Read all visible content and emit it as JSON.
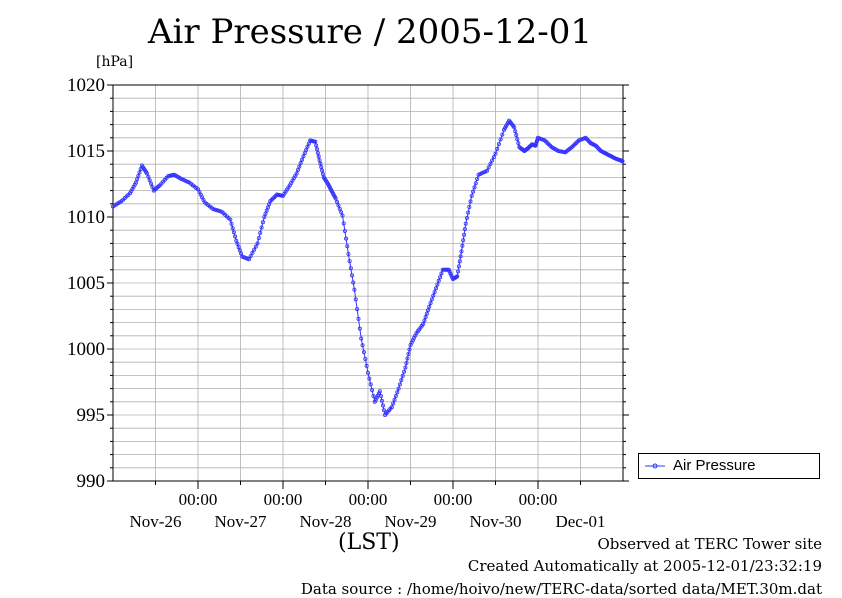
{
  "chart_data": {
    "type": "line",
    "title": "Air Pressure / 2005-12-01",
    "ylabel": "[hPa]",
    "xlabel": "(LST)",
    "ylim": [
      990,
      1020
    ],
    "yticks": [
      990,
      995,
      1000,
      1005,
      1010,
      1015,
      1020
    ],
    "xlim": [
      -1.0,
      5.0
    ],
    "xtick_positions": [
      0,
      1,
      2,
      3,
      4
    ],
    "xtick_time_labels": [
      "00:00",
      "00:00",
      "00:00",
      "00:00",
      "00:00"
    ],
    "xtick_date_labels": [
      "Nov-26",
      "Nov-27",
      "Nov-28",
      "Nov-29",
      "Nov-30",
      "Dec-01"
    ],
    "grid": true,
    "legend_position": "right",
    "series": [
      {
        "name": "Air Pressure",
        "color": "#3333ff",
        "marker": "circle",
        "x": [
          -1.0,
          -0.9,
          -0.8,
          -0.73,
          -0.66,
          -0.6,
          -0.52,
          -0.45,
          -0.35,
          -0.28,
          -0.2,
          -0.1,
          0.0,
          0.08,
          0.18,
          0.28,
          0.38,
          0.45,
          0.52,
          0.6,
          0.7,
          0.78,
          0.85,
          0.93,
          1.0,
          1.08,
          1.16,
          1.24,
          1.32,
          1.38,
          1.43,
          1.48,
          1.53,
          1.57,
          1.62,
          1.7,
          1.77,
          1.84,
          1.92,
          2.0,
          2.08,
          2.14,
          2.2,
          2.28,
          2.36,
          2.44,
          2.5,
          2.57,
          2.65,
          2.72,
          2.8,
          2.88,
          2.95,
          3.0,
          3.05,
          3.1,
          3.15,
          3.22,
          3.3,
          3.4,
          3.5,
          3.6,
          3.66,
          3.72,
          3.78,
          3.84,
          3.88,
          3.93,
          3.97,
          4.0,
          4.08,
          4.16,
          4.24,
          4.32,
          4.4,
          4.48,
          4.56,
          4.62,
          4.68,
          4.74,
          4.8,
          4.86,
          4.92,
          4.97,
          5.0
        ],
        "values": [
          1010.8,
          1011.2,
          1011.8,
          1012.6,
          1013.9,
          1013.3,
          1012.0,
          1012.4,
          1013.1,
          1013.2,
          1012.9,
          1012.6,
          1012.1,
          1011.1,
          1010.6,
          1010.4,
          1009.8,
          1008.2,
          1007.0,
          1006.8,
          1008.0,
          1010.0,
          1011.2,
          1011.7,
          1011.6,
          1012.4,
          1013.3,
          1014.6,
          1015.8,
          1015.7,
          1014.3,
          1013.0,
          1012.5,
          1012.0,
          1011.4,
          1010.1,
          1007.2,
          1004.5,
          1000.8,
          998.2,
          996.0,
          996.8,
          995.0,
          995.6,
          997.0,
          998.6,
          1000.3,
          1001.2,
          1001.9,
          1003.2,
          1004.6,
          1006.0,
          1006.0,
          1005.3,
          1005.5,
          1007.4,
          1009.5,
          1011.6,
          1013.2,
          1013.5,
          1014.8,
          1016.6,
          1017.3,
          1016.8,
          1015.3,
          1015.0,
          1015.2,
          1015.5,
          1015.4,
          1016.0,
          1015.8,
          1015.3,
          1015.0,
          1014.9,
          1015.3,
          1015.8,
          1016.0,
          1015.6,
          1015.4,
          1015.0,
          1014.8,
          1014.6,
          1014.4,
          1014.3,
          1014.2
        ]
      }
    ]
  },
  "footer": {
    "line1": "Observed at TERC Tower site",
    "line2": "Created Automatically at 2005-12-01/23:32:19",
    "line3": "Data source : /home/hoivo/new/TERC-data/sorted data/MET.30m.dat"
  }
}
